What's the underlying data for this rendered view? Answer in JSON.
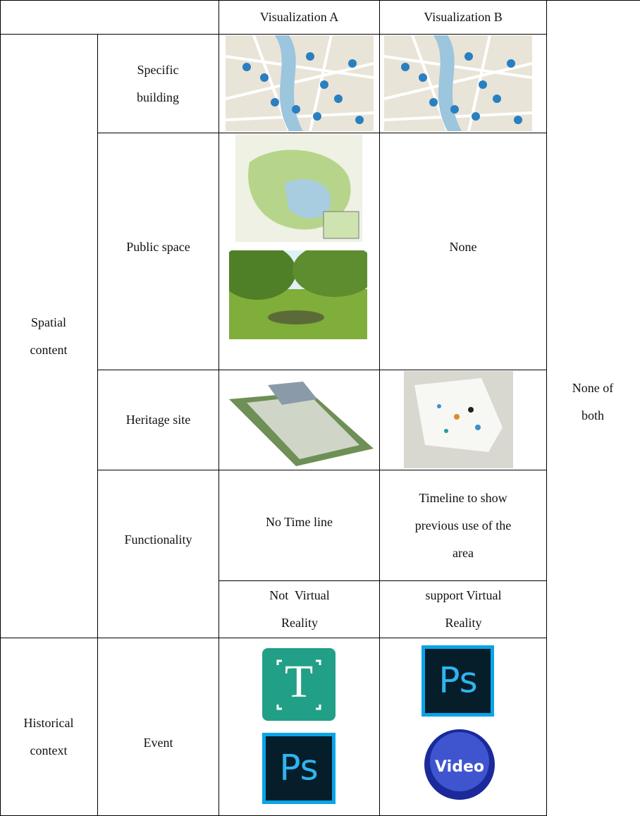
{
  "header": {
    "columns": [
      "Visualization A",
      "Visualization B"
    ]
  },
  "groups": [
    "Spatial content",
    "Historical context"
  ],
  "rows": {
    "specific_building": "Specific building",
    "public_space": "Public space",
    "heritage_site": "Heritage site",
    "functionality": "Functionality",
    "event": "Event"
  },
  "cells": {
    "public_space_b": "None",
    "timeline_a": "No Time line",
    "timeline_b": "Timeline to show previous use of the area",
    "vr_a": "Not  Virtual Reality",
    "vr_b": "support Virtual Reality",
    "none_of_both": "None of both"
  },
  "icons": {
    "event_a_1": "T",
    "event_a_2": "Ps",
    "event_b_1": "Ps",
    "event_b_2": "Video"
  }
}
